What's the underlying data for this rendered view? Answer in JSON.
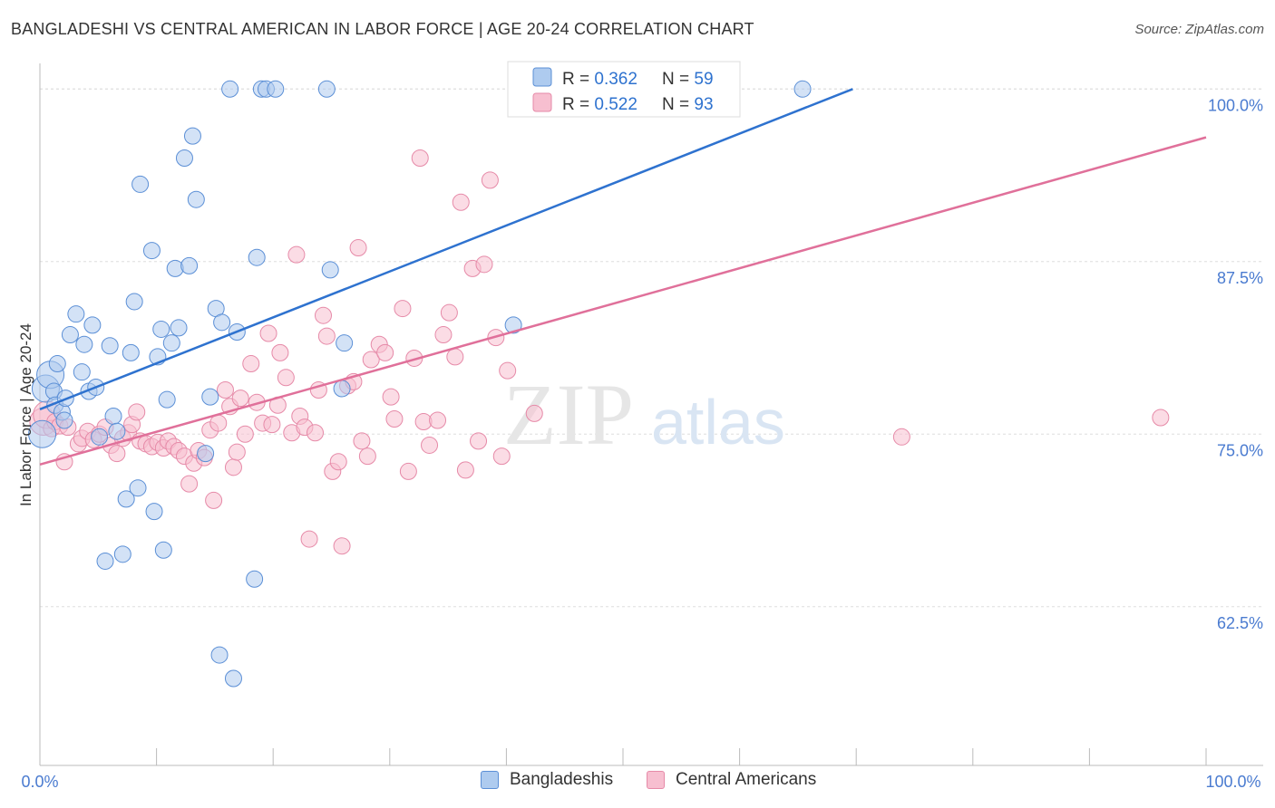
{
  "title": "BANGLADESHI VS CENTRAL AMERICAN IN LABOR FORCE | AGE 20-24 CORRELATION CHART",
  "source": "Source: ZipAtlas.com",
  "watermark": {
    "zip": "ZIP",
    "atlas": "atlas"
  },
  "colors": {
    "blue_fill": "#aecbef",
    "blue_stroke": "#5b8fd6",
    "blue_line": "#2e72cf",
    "pink_fill": "#f7bfd0",
    "pink_stroke": "#e68aa8",
    "pink_line": "#e0709a",
    "tick_text": "#4a7bd0",
    "grid": "#dddddd"
  },
  "legend": {
    "rows": [
      {
        "r_label": "R = ",
        "r_value": "0.362",
        "n_label": "N = ",
        "n_value": "59"
      },
      {
        "r_label": "R = ",
        "r_value": "0.522",
        "n_label": "N = ",
        "n_value": "93"
      }
    ]
  },
  "chart_data": {
    "type": "scatter",
    "title": "BANGLADESHI VS CENTRAL AMERICAN IN LABOR FORCE | AGE 20-24 CORRELATION CHART",
    "xlabel": "",
    "ylabel": "In Labor Force | Age 20-24",
    "xlim": [
      0,
      100
    ],
    "ylim": [
      51,
      101.2
    ],
    "x_tick_labels": [
      "0.0%",
      "100.0%"
    ],
    "y_ticks": [
      62.5,
      75.0,
      87.5,
      100.0
    ],
    "y_tick_labels": [
      "62.5%",
      "75.0%",
      "87.5%",
      "100.0%"
    ],
    "grid": true,
    "legend_position": "top-center",
    "series": [
      {
        "name": "Bangladeshis",
        "r": 0.362,
        "n": 59,
        "trend": {
          "x": [
            0,
            69.7
          ],
          "y": [
            76.8,
            100.0
          ]
        },
        "points": [
          [
            0.2,
            75.0
          ],
          [
            0.5,
            78.3
          ],
          [
            0.9,
            79.3
          ],
          [
            1.2,
            78.1
          ],
          [
            1.3,
            77.1
          ],
          [
            1.5,
            80.1
          ],
          [
            1.9,
            76.6
          ],
          [
            2.2,
            77.6
          ],
          [
            2.6,
            82.2
          ],
          [
            3.1,
            83.7
          ],
          [
            3.6,
            79.5
          ],
          [
            3.8,
            81.5
          ],
          [
            4.2,
            78.1
          ],
          [
            4.5,
            82.9
          ],
          [
            4.8,
            78.4
          ],
          [
            5.1,
            74.8
          ],
          [
            5.6,
            65.8
          ],
          [
            6.0,
            81.4
          ],
          [
            6.3,
            76.3
          ],
          [
            6.6,
            75.2
          ],
          [
            7.1,
            66.3
          ],
          [
            7.4,
            70.3
          ],
          [
            7.8,
            80.9
          ],
          [
            8.1,
            84.6
          ],
          [
            8.4,
            71.1
          ],
          [
            8.6,
            93.1
          ],
          [
            9.6,
            88.3
          ],
          [
            9.8,
            69.4
          ],
          [
            10.1,
            80.6
          ],
          [
            10.4,
            82.6
          ],
          [
            10.6,
            66.6
          ],
          [
            10.9,
            77.5
          ],
          [
            11.3,
            81.6
          ],
          [
            11.6,
            87.0
          ],
          [
            11.9,
            82.7
          ],
          [
            12.4,
            95.0
          ],
          [
            12.8,
            87.2
          ],
          [
            13.1,
            96.6
          ],
          [
            13.4,
            92.0
          ],
          [
            14.2,
            73.6
          ],
          [
            14.6,
            77.7
          ],
          [
            15.1,
            84.1
          ],
          [
            15.4,
            59.0
          ],
          [
            15.6,
            83.1
          ],
          [
            16.3,
            100.0
          ],
          [
            16.6,
            57.3
          ],
          [
            16.9,
            82.4
          ],
          [
            18.4,
            64.5
          ],
          [
            18.6,
            87.8
          ],
          [
            19.0,
            100.0
          ],
          [
            19.4,
            100.0
          ],
          [
            20.2,
            100.0
          ],
          [
            24.6,
            100.0
          ],
          [
            24.9,
            86.9
          ],
          [
            25.9,
            78.3
          ],
          [
            26.1,
            81.6
          ],
          [
            40.6,
            82.9
          ],
          [
            65.4,
            100.0
          ],
          [
            2.1,
            76.0
          ]
        ]
      },
      {
        "name": "Central Americans",
        "r": 0.522,
        "n": 93,
        "trend": {
          "x": [
            0,
            100
          ],
          "y": [
            72.8,
            96.5
          ]
        },
        "points": [
          [
            0.3,
            75.9
          ],
          [
            0.6,
            76.4
          ],
          [
            1.0,
            75.4
          ],
          [
            1.3,
            75.9
          ],
          [
            1.7,
            75.6
          ],
          [
            2.1,
            73.0
          ],
          [
            2.4,
            75.5
          ],
          [
            3.3,
            74.3
          ],
          [
            3.6,
            74.7
          ],
          [
            4.1,
            75.2
          ],
          [
            4.6,
            74.6
          ],
          [
            5.1,
            75.0
          ],
          [
            5.6,
            75.5
          ],
          [
            6.1,
            74.2
          ],
          [
            6.6,
            73.6
          ],
          [
            7.1,
            74.7
          ],
          [
            7.6,
            75.1
          ],
          [
            7.9,
            75.7
          ],
          [
            8.3,
            76.6
          ],
          [
            8.6,
            74.5
          ],
          [
            9.1,
            74.3
          ],
          [
            9.6,
            74.1
          ],
          [
            10.1,
            74.4
          ],
          [
            10.6,
            74.0
          ],
          [
            11.0,
            74.5
          ],
          [
            11.5,
            74.1
          ],
          [
            11.9,
            73.8
          ],
          [
            12.4,
            73.4
          ],
          [
            12.8,
            71.4
          ],
          [
            13.2,
            72.9
          ],
          [
            13.6,
            73.8
          ],
          [
            14.1,
            73.3
          ],
          [
            14.6,
            75.3
          ],
          [
            14.9,
            70.2
          ],
          [
            15.3,
            75.8
          ],
          [
            15.9,
            78.2
          ],
          [
            16.3,
            77.0
          ],
          [
            16.6,
            72.6
          ],
          [
            16.9,
            73.7
          ],
          [
            17.2,
            77.6
          ],
          [
            17.6,
            75.0
          ],
          [
            18.1,
            80.1
          ],
          [
            18.6,
            77.3
          ],
          [
            19.1,
            75.8
          ],
          [
            19.6,
            82.3
          ],
          [
            19.9,
            75.7
          ],
          [
            20.4,
            77.1
          ],
          [
            20.6,
            80.9
          ],
          [
            21.1,
            79.1
          ],
          [
            21.6,
            75.1
          ],
          [
            22.0,
            88.0
          ],
          [
            22.3,
            76.3
          ],
          [
            22.7,
            75.5
          ],
          [
            23.1,
            67.4
          ],
          [
            23.6,
            75.1
          ],
          [
            23.9,
            78.2
          ],
          [
            24.3,
            83.6
          ],
          [
            24.6,
            82.1
          ],
          [
            25.1,
            72.3
          ],
          [
            25.6,
            73.0
          ],
          [
            25.9,
            66.9
          ],
          [
            26.4,
            78.5
          ],
          [
            26.9,
            78.8
          ],
          [
            27.3,
            88.5
          ],
          [
            27.6,
            74.5
          ],
          [
            28.1,
            73.4
          ],
          [
            28.4,
            80.4
          ],
          [
            29.1,
            81.5
          ],
          [
            29.6,
            80.9
          ],
          [
            30.1,
            77.7
          ],
          [
            30.4,
            76.1
          ],
          [
            31.1,
            84.1
          ],
          [
            31.6,
            72.3
          ],
          [
            32.1,
            80.5
          ],
          [
            32.6,
            95.0
          ],
          [
            32.9,
            75.9
          ],
          [
            33.4,
            74.2
          ],
          [
            34.1,
            76.0
          ],
          [
            34.6,
            82.2
          ],
          [
            35.1,
            83.8
          ],
          [
            35.6,
            80.6
          ],
          [
            36.1,
            91.8
          ],
          [
            36.5,
            72.4
          ],
          [
            37.1,
            87.0
          ],
          [
            37.6,
            74.5
          ],
          [
            38.1,
            87.3
          ],
          [
            38.6,
            93.4
          ],
          [
            39.1,
            82.0
          ],
          [
            39.6,
            73.4
          ],
          [
            40.1,
            79.6
          ],
          [
            42.4,
            76.5
          ],
          [
            73.9,
            74.8
          ],
          [
            96.1,
            76.2
          ]
        ]
      }
    ]
  },
  "legend_bottom": [
    {
      "label": "Bangladeshis"
    },
    {
      "label": "Central Americans"
    }
  ]
}
